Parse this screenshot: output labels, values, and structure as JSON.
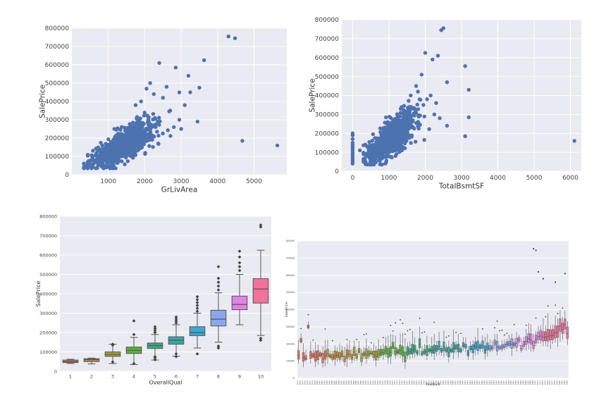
{
  "chart_data": [
    {
      "type": "scatter",
      "xlabel": "GrLivArea",
      "ylabel": "SalePrice",
      "xlim": [
        0,
        5900
      ],
      "ylim": [
        0,
        800000
      ],
      "xticks": [
        1000,
        2000,
        3000,
        4000,
        5000
      ],
      "yticks": [
        0,
        100000,
        200000,
        300000,
        400000,
        500000,
        600000,
        700000,
        800000
      ],
      "color": "#4c72b0",
      "points": [
        [
          4300,
          755000
        ],
        [
          4480,
          745000
        ],
        [
          3630,
          625000
        ],
        [
          2400,
          610000
        ],
        [
          2850,
          585000
        ],
        [
          3200,
          540000
        ],
        [
          3500,
          475000
        ],
        [
          3250,
          450000
        ],
        [
          2150,
          500000
        ],
        [
          2600,
          480000
        ],
        [
          4680,
          185000
        ],
        [
          5640,
          160000
        ],
        [
          3450,
          290000
        ],
        [
          3100,
          380000
        ],
        [
          2950,
          300000
        ],
        [
          2700,
          350000
        ],
        [
          2500,
          420000
        ],
        [
          2250,
          440000
        ],
        [
          2050,
          470000
        ],
        [
          1900,
          400000
        ],
        [
          1750,
          380000
        ],
        [
          2800,
          260000
        ],
        [
          3000,
          250000
        ],
        [
          2100,
          300000
        ],
        [
          2300,
          260000
        ],
        [
          1600,
          250000
        ],
        [
          1500,
          220000
        ],
        [
          1400,
          200000
        ],
        [
          1300,
          180000
        ],
        [
          1200,
          160000
        ],
        [
          1100,
          150000
        ],
        [
          1000,
          130000
        ],
        [
          900,
          120000
        ],
        [
          800,
          100000
        ],
        [
          700,
          90000
        ],
        [
          600,
          70000
        ],
        [
          500,
          60000
        ],
        [
          400,
          50000
        ],
        [
          350,
          40000
        ],
        [
          1700,
          280000
        ]
      ],
      "cloud": {
        "x_mean": 1450,
        "x_sd": 420,
        "intercept": 15000,
        "slope": 105,
        "noise_sd": 38000,
        "n": 900,
        "xmin": 330,
        "xmax": 2950
      }
    },
    {
      "type": "scatter",
      "xlabel": "TotalBsmtSF",
      "ylabel": "SalePrice",
      "xlim": [
        -300,
        6300
      ],
      "ylim": [
        0,
        800000
      ],
      "xticks": [
        0,
        1000,
        2000,
        3000,
        4000,
        5000,
        6000
      ],
      "yticks": [
        0,
        100000,
        200000,
        300000,
        400000,
        500000,
        600000,
        700000,
        800000
      ],
      "color": "#4c72b0",
      "points": [
        [
          2440,
          745000
        ],
        [
          2500,
          755000
        ],
        [
          2000,
          625000
        ],
        [
          2350,
          610000
        ],
        [
          2200,
          590000
        ],
        [
          3100,
          555000
        ],
        [
          3200,
          430000
        ],
        [
          2600,
          470000
        ],
        [
          1900,
          510000
        ],
        [
          1750,
          450000
        ],
        [
          6110,
          160000
        ],
        [
          3200,
          285000
        ],
        [
          3100,
          185000
        ],
        [
          2150,
          400000
        ],
        [
          2050,
          380000
        ],
        [
          1800,
          420000
        ],
        [
          1600,
          400000
        ],
        [
          2300,
          360000
        ],
        [
          1950,
          350000
        ],
        [
          1650,
          330000
        ],
        [
          0,
          200000
        ],
        [
          0,
          190000
        ],
        [
          0,
          170000
        ],
        [
          0,
          150000
        ],
        [
          0,
          140000
        ],
        [
          0,
          130000
        ],
        [
          0,
          120000
        ],
        [
          0,
          110000
        ],
        [
          0,
          100000
        ],
        [
          0,
          90000
        ],
        [
          0,
          80000
        ],
        [
          0,
          70000
        ],
        [
          0,
          60000
        ],
        [
          0,
          50000
        ],
        [
          0,
          40000
        ],
        [
          200,
          110000
        ],
        [
          300,
          90000
        ],
        [
          400,
          130000
        ],
        [
          500,
          80000
        ],
        [
          2600,
          240000
        ],
        [
          2400,
          280000
        ],
        [
          2250,
          300000
        ]
      ],
      "cloud": {
        "x_mean": 1050,
        "x_sd": 330,
        "intercept": 20000,
        "slope": 145,
        "noise_sd": 40000,
        "n": 900,
        "xmin": 300,
        "xmax": 2300
      }
    },
    {
      "type": "box",
      "xlabel": "OverallQual",
      "ylabel": "SalePrice",
      "ylim": [
        0,
        800000
      ],
      "yticks": [
        0,
        100000,
        200000,
        300000,
        400000,
        500000,
        600000,
        700000,
        800000
      ],
      "categories": [
        "1",
        "2",
        "3",
        "4",
        "5",
        "6",
        "7",
        "8",
        "9",
        "10"
      ],
      "colors": [
        "#e8725d",
        "#c99230",
        "#a5a232",
        "#59b337",
        "#36ae80",
        "#36aaa5",
        "#38a8ce",
        "#8aa6ee",
        "#e083e3",
        "#f3729b"
      ],
      "boxes": [
        {
          "lo": 40000,
          "q1": 45000,
          "med": 50000,
          "q3": 58000,
          "hi": 62000,
          "out": []
        },
        {
          "lo": 38000,
          "q1": 50000,
          "med": 60000,
          "q3": 65000,
          "hi": 68000,
          "out": []
        },
        {
          "lo": 40000,
          "q1": 77000,
          "med": 87000,
          "q3": 100000,
          "hi": 140000,
          "out": [
            48000,
            135000,
            140000
          ]
        },
        {
          "lo": 35000,
          "q1": 92000,
          "med": 108000,
          "q3": 125000,
          "hi": 175000,
          "out": [
            260000,
            190000,
            40000
          ]
        },
        {
          "lo": 58000,
          "q1": 118000,
          "med": 133000,
          "q3": 146000,
          "hi": 190000,
          "out": [
            200000,
            210000,
            220000,
            230000,
            60000,
            70000,
            75000
          ]
        },
        {
          "lo": 78000,
          "q1": 140000,
          "med": 160000,
          "q3": 178000,
          "hi": 240000,
          "out": [
            250000,
            260000,
            270000,
            280000,
            76000,
            90000
          ]
        },
        {
          "lo": 120000,
          "q1": 184000,
          "med": 200000,
          "q3": 230000,
          "hi": 300000,
          "out": [
            310000,
            325000,
            340000,
            355000,
            370000,
            385000,
            90000
          ]
        },
        {
          "lo": 150000,
          "q1": 234000,
          "med": 269000,
          "q3": 315000,
          "hi": 405000,
          "out": [
            420000,
            440000,
            460000,
            480000,
            540000,
            120000,
            130000
          ]
        },
        {
          "lo": 240000,
          "q1": 318000,
          "med": 345000,
          "q3": 388000,
          "hi": 500000,
          "out": [
            520000,
            540000,
            560000,
            590000,
            620000
          ]
        },
        {
          "lo": 185000,
          "q1": 352000,
          "med": 425000,
          "q3": 478000,
          "hi": 625000,
          "out": [
            745000,
            755000,
            160000,
            170000
          ]
        }
      ]
    },
    {
      "type": "box",
      "xlabel": "YearBuilt",
      "ylabel": "SalePrice",
      "ylim": [
        0,
        800000
      ],
      "yticks": [
        0,
        100000,
        200000,
        300000,
        400000,
        500000,
        600000,
        700000,
        800000
      ],
      "categories_start": 1872,
      "categories_count": 112,
      "palette": [
        "#e8725d",
        "#c99230",
        "#a5a232",
        "#59b337",
        "#36ae80",
        "#36aaa5",
        "#38a8ce",
        "#8aa6ee",
        "#e083e3",
        "#f3729b"
      ],
      "notable_medians": [
        [
          1,
          220000
        ],
        [
          4,
          300000
        ],
        [
          8,
          130000
        ],
        [
          50,
          200000
        ],
        [
          95,
          230000
        ],
        [
          105,
          250000
        ],
        [
          111,
          260000
        ]
      ],
      "top_outliers": [
        [
          97,
          755000
        ],
        [
          98,
          745000
        ],
        [
          99,
          620000
        ],
        [
          110,
          610000
        ],
        [
          101,
          580000
        ],
        [
          106,
          560000
        ]
      ]
    }
  ]
}
